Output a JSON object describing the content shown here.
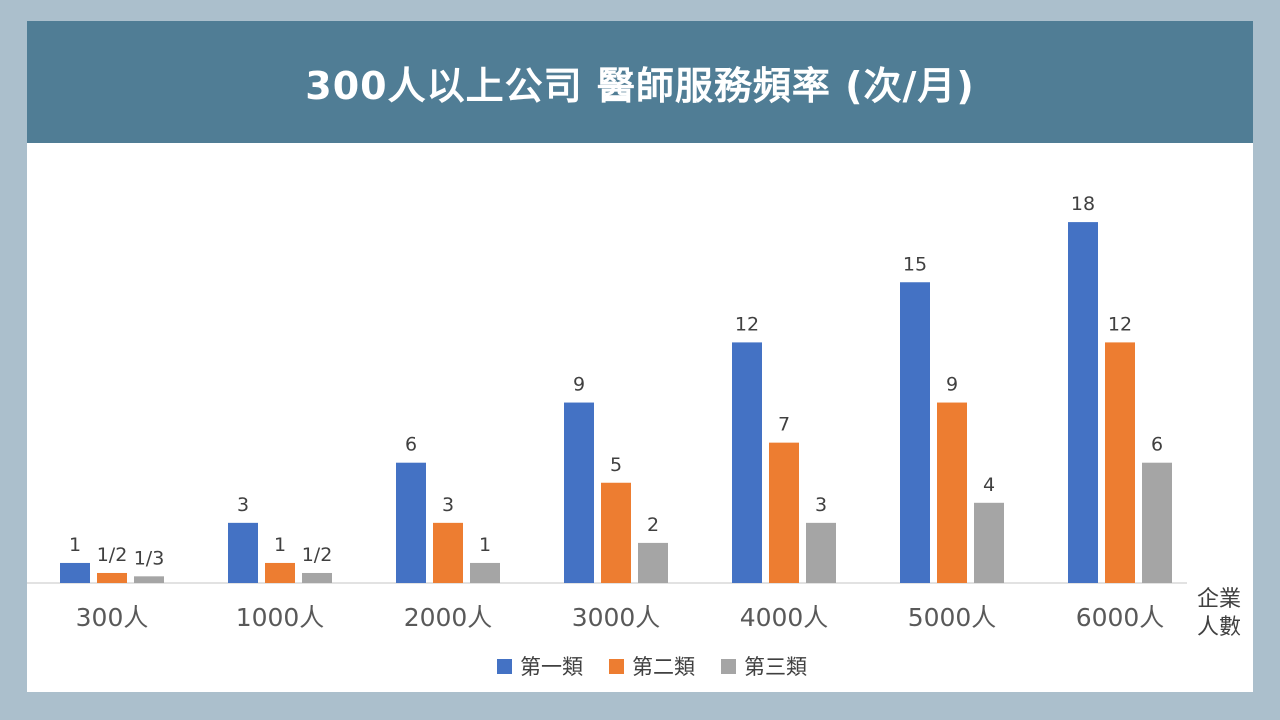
{
  "title": "300人以上公司 醫師服務頻率 (次/月)",
  "x_axis_label_line1": "企業",
  "x_axis_label_line2": "人數",
  "chart_data": {
    "type": "bar",
    "title": "300人以上公司 醫師服務頻率 (次/月)",
    "xlabel": "企業人數",
    "ylabel": "",
    "categories": [
      "300人",
      "1000人",
      "2000人",
      "3000人",
      "4000人",
      "5000人",
      "6000人"
    ],
    "series": [
      {
        "name": "第一類",
        "color": "#4472c4",
        "values": [
          1,
          3,
          6,
          9,
          12,
          15,
          18
        ],
        "labels": [
          "1",
          "3",
          "6",
          "9",
          "12",
          "15",
          "18"
        ]
      },
      {
        "name": "第二類",
        "color": "#ed7d31",
        "values": [
          0.5,
          1,
          3,
          5,
          7,
          9,
          12
        ],
        "labels": [
          "1/2",
          "1",
          "3",
          "5",
          "7",
          "9",
          "12"
        ]
      },
      {
        "name": "第三類",
        "color": "#a5a5a5",
        "values": [
          0.333,
          0.5,
          1,
          2,
          3,
          4,
          6
        ],
        "labels": [
          "1/3",
          "1/2",
          "1",
          "2",
          "3",
          "4",
          "6"
        ]
      }
    ],
    "ylim": [
      0,
      20
    ],
    "grid": false,
    "legend": "bottom"
  }
}
